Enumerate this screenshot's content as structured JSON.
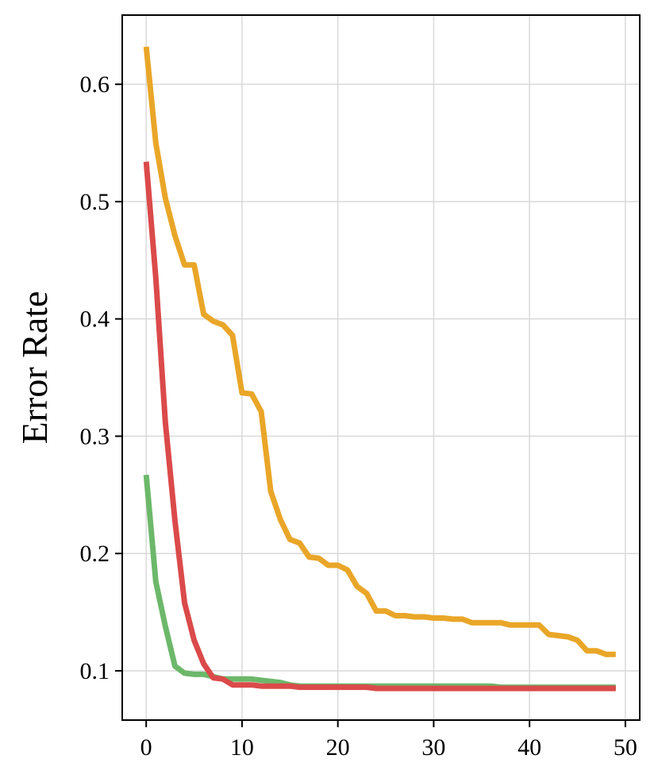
{
  "chart_data": {
    "type": "line",
    "title": "",
    "xlabel": "",
    "ylabel": "Error Rate",
    "xlim": [
      -2.5,
      51.5
    ],
    "ylim": [
      0.058,
      0.659
    ],
    "xticks": [
      0,
      10,
      20,
      30,
      40,
      50
    ],
    "yticks": [
      0.1,
      0.2,
      0.3,
      0.4,
      0.5,
      0.6
    ],
    "xtick_labels": [
      "0",
      "10",
      "20",
      "30",
      "40",
      "50"
    ],
    "ytick_labels": [
      "0.1",
      "0.2",
      "0.3",
      "0.4",
      "0.5",
      "0.6"
    ],
    "grid": true,
    "legend": "none",
    "x": [
      0,
      1,
      2,
      3,
      4,
      5,
      6,
      7,
      8,
      9,
      10,
      11,
      12,
      13,
      14,
      15,
      16,
      17,
      18,
      19,
      20,
      21,
      22,
      23,
      24,
      25,
      26,
      27,
      28,
      29,
      30,
      31,
      32,
      33,
      34,
      35,
      36,
      37,
      38,
      39,
      40,
      41,
      42,
      43,
      44,
      45,
      46,
      47,
      48,
      49
    ],
    "series": [
      {
        "color": "#E9A628",
        "values": [
          0.632,
          0.55,
          0.503,
          0.471,
          0.446,
          0.446,
          0.404,
          0.398,
          0.395,
          0.386,
          0.337,
          0.336,
          0.321,
          0.253,
          0.229,
          0.212,
          0.209,
          0.197,
          0.196,
          0.19,
          0.19,
          0.186,
          0.172,
          0.166,
          0.151,
          0.151,
          0.147,
          0.147,
          0.146,
          0.146,
          0.145,
          0.145,
          0.144,
          0.144,
          0.141,
          0.141,
          0.141,
          0.141,
          0.139,
          0.139,
          0.139,
          0.139,
          0.131,
          0.13,
          0.129,
          0.126,
          0.117,
          0.117,
          0.114,
          0.114
        ]
      },
      {
        "color": "#6CB86A",
        "values": [
          0.267,
          0.176,
          0.138,
          0.104,
          0.098,
          0.097,
          0.097,
          0.095,
          0.093,
          0.093,
          0.093,
          0.093,
          0.092,
          0.091,
          0.09,
          0.088,
          0.087,
          0.087,
          0.087,
          0.087,
          0.087,
          0.087,
          0.087,
          0.087,
          0.087,
          0.087,
          0.087,
          0.087,
          0.087,
          0.087,
          0.087,
          0.087,
          0.087,
          0.087,
          0.087,
          0.087,
          0.087,
          0.086,
          0.086,
          0.086,
          0.086,
          0.086,
          0.086,
          0.086,
          0.086,
          0.086,
          0.086,
          0.086,
          0.086,
          0.086
        ]
      },
      {
        "color": "#DB4A4A",
        "values": [
          0.534,
          0.435,
          0.312,
          0.228,
          0.158,
          0.126,
          0.106,
          0.094,
          0.093,
          0.088,
          0.088,
          0.088,
          0.087,
          0.087,
          0.087,
          0.087,
          0.086,
          0.086,
          0.086,
          0.086,
          0.086,
          0.086,
          0.086,
          0.086,
          0.085,
          0.085,
          0.085,
          0.085,
          0.085,
          0.085,
          0.085,
          0.085,
          0.085,
          0.085,
          0.085,
          0.085,
          0.085,
          0.085,
          0.085,
          0.085,
          0.085,
          0.085,
          0.085,
          0.085,
          0.085,
          0.085,
          0.085,
          0.085,
          0.085,
          0.085
        ]
      }
    ]
  }
}
